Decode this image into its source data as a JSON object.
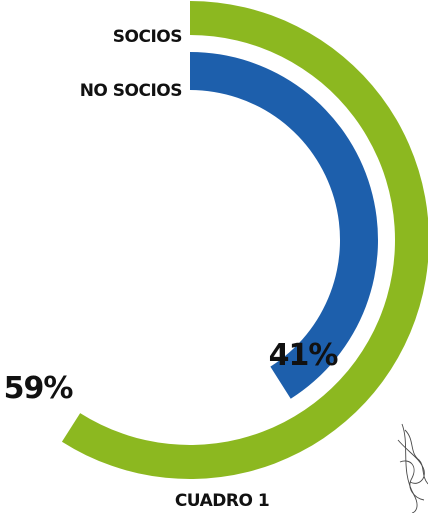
{
  "chart_data": {
    "type": "radial-bar",
    "title": "",
    "series": [
      {
        "name": "SOCIOS",
        "value": 59,
        "value_label": "59%",
        "color": "#8cb820"
      },
      {
        "name": "NO SOCIOS",
        "value": 41,
        "value_label": "41%",
        "color": "#1d5fac"
      }
    ],
    "max": 100,
    "start_angle": "top",
    "direction": "clockwise",
    "caption": "CUADRO 1"
  }
}
